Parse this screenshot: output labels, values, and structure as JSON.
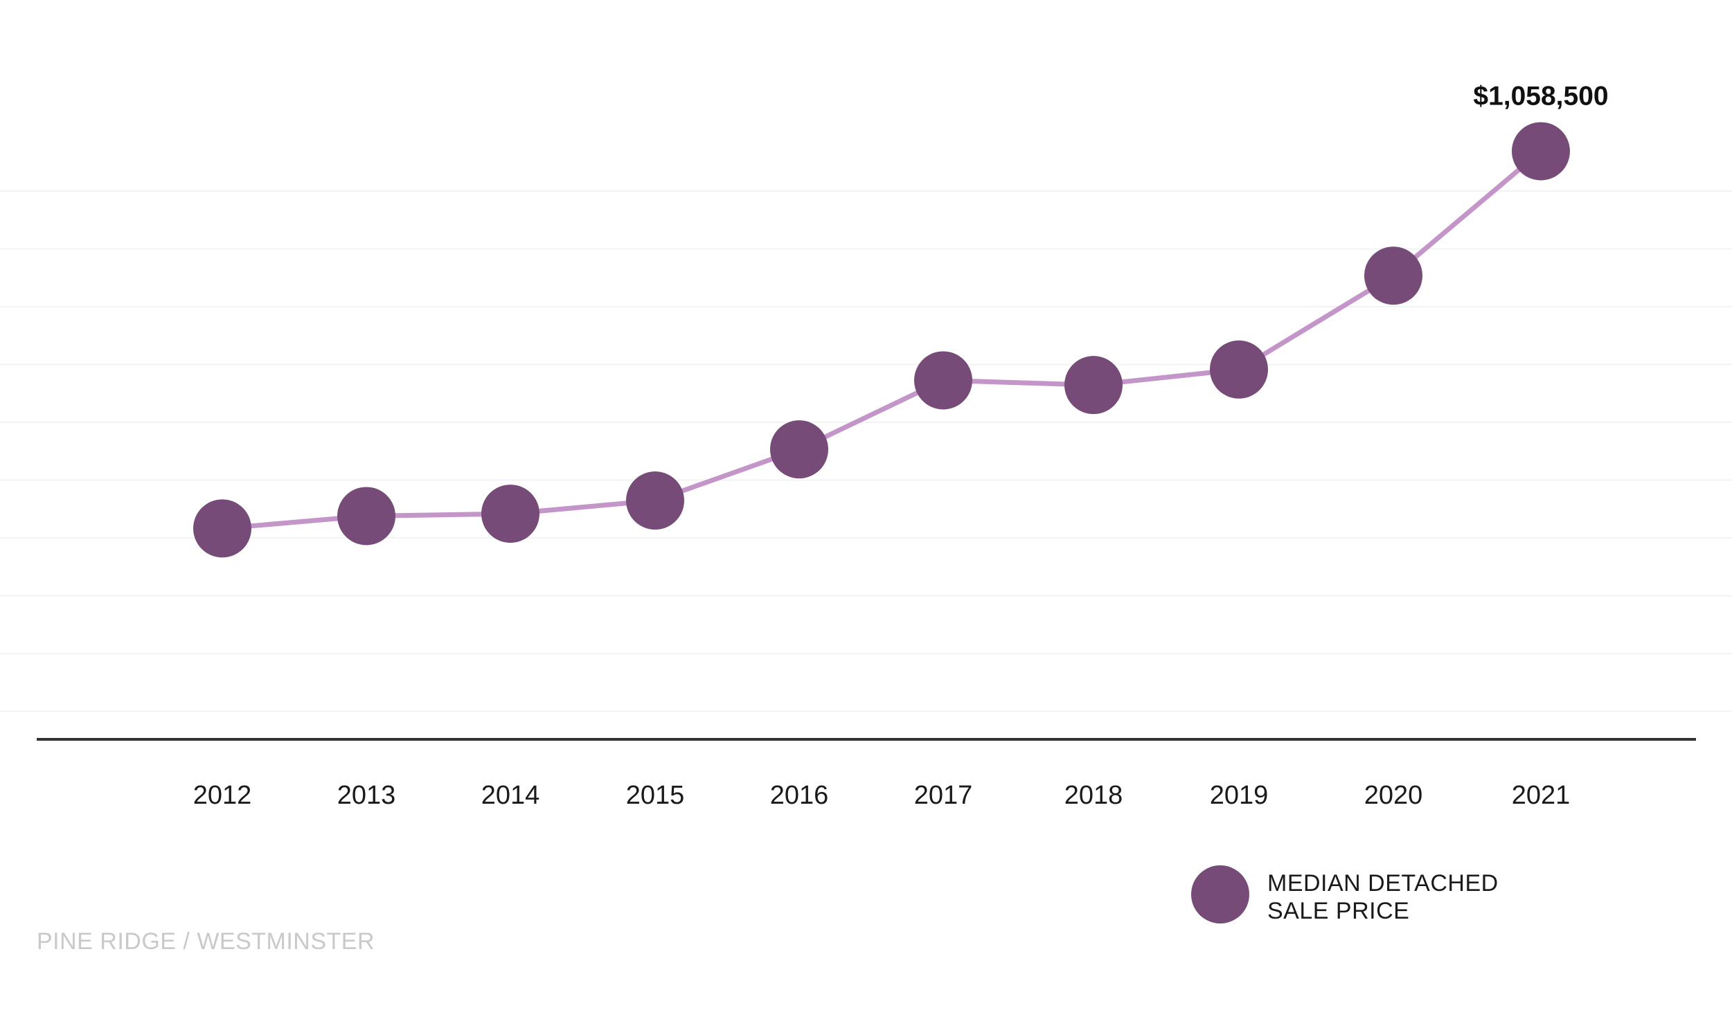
{
  "chart_data": {
    "type": "line",
    "title": "",
    "xlabel": "",
    "ylabel": "",
    "categories": [
      "2012",
      "2013",
      "2014",
      "2015",
      "2016",
      "2017",
      "2018",
      "2019",
      "2020",
      "2021"
    ],
    "series": [
      {
        "name": "MEDIAN DETACHED SALE PRICE",
        "values": [
          572000,
          588000,
          591000,
          608000,
          674000,
          763000,
          757000,
          777000,
          898000,
          1058500
        ],
        "color": "#764b77",
        "line_color": "#c395c8"
      }
    ],
    "annotations": [
      {
        "category": "2021",
        "text": "$1,058,500"
      }
    ],
    "ylim": [
      300000,
      1200000
    ],
    "grid": true,
    "y_tick_labels_shown": false,
    "legend": {
      "position": "bottom-right",
      "lines": [
        "MEDIAN DETACHED",
        "SALE PRICE"
      ]
    }
  },
  "source_label": "PINE RIDGE / WESTMINSTER"
}
